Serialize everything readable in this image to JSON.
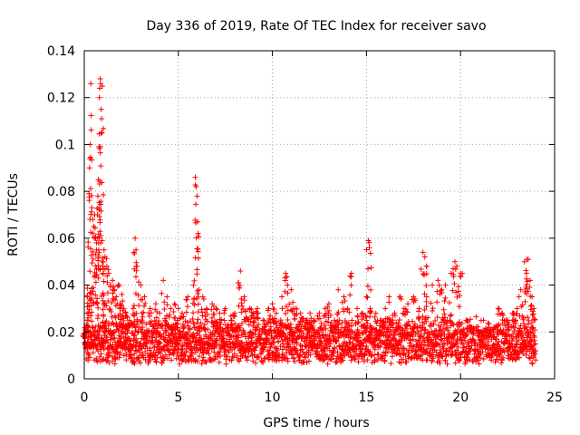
{
  "chart_data": {
    "type": "scatter",
    "title": "Day 336 of 2019, Rate Of TEC Index for receiver savo",
    "xlabel": "GPS time / hours",
    "ylabel": "ROTI / TECUs",
    "xlim": [
      0,
      25
    ],
    "ylim": [
      0,
      0.14
    ],
    "xticks": [
      0,
      5,
      10,
      15,
      20,
      25
    ],
    "xtick_labels": [
      "0",
      "5",
      "10",
      "15",
      "20",
      "25"
    ],
    "yticks": [
      0,
      0.02,
      0.04,
      0.06,
      0.08,
      0.1,
      0.12,
      0.14
    ],
    "ytick_labels": [
      "0",
      "0.02",
      "0.04",
      "0.06",
      "0.08",
      "0.1",
      "0.12",
      "0.14"
    ],
    "grid": true,
    "marker": "+",
    "color": "#ff0000",
    "series": [
      {
        "points": [
          [
            0.0,
            0.018
          ],
          [
            0.1,
            0.022
          ],
          [
            0.15,
            0.035
          ],
          [
            0.2,
            0.026
          ],
          [
            0.25,
            0.079
          ],
          [
            0.28,
            0.09
          ],
          [
            0.3,
            0.094
          ],
          [
            0.32,
            0.1
          ],
          [
            0.35,
            0.126
          ],
          [
            0.4,
            0.073
          ],
          [
            0.45,
            0.068
          ],
          [
            0.5,
            0.065
          ],
          [
            0.55,
            0.07
          ],
          [
            0.6,
            0.06
          ],
          [
            0.65,
            0.055
          ],
          [
            0.7,
            0.07
          ],
          [
            0.72,
            0.078
          ],
          [
            0.75,
            0.085
          ],
          [
            0.78,
            0.099
          ],
          [
            0.8,
            0.12
          ],
          [
            0.82,
            0.124
          ],
          [
            0.85,
            0.128
          ],
          [
            0.87,
            0.126
          ],
          [
            0.9,
            0.115
          ],
          [
            0.92,
            0.111
          ],
          [
            0.95,
            0.05
          ],
          [
            1.0,
            0.045
          ],
          [
            1.05,
            0.055
          ],
          [
            1.1,
            0.052
          ],
          [
            1.2,
            0.048
          ],
          [
            1.3,
            0.045
          ],
          [
            1.4,
            0.04
          ],
          [
            1.5,
            0.042
          ],
          [
            1.6,
            0.038
          ],
          [
            1.7,
            0.035
          ],
          [
            1.8,
            0.04
          ],
          [
            1.9,
            0.032
          ],
          [
            2.0,
            0.036
          ],
          [
            2.1,
            0.03
          ],
          [
            2.2,
            0.028
          ],
          [
            2.4,
            0.025
          ],
          [
            2.6,
            0.03
          ],
          [
            2.7,
            0.06
          ],
          [
            2.75,
            0.055
          ],
          [
            2.8,
            0.048
          ],
          [
            3.0,
            0.04
          ],
          [
            3.2,
            0.035
          ],
          [
            3.5,
            0.03
          ],
          [
            3.8,
            0.032
          ],
          [
            4.0,
            0.028
          ],
          [
            4.2,
            0.042
          ],
          [
            4.4,
            0.035
          ],
          [
            4.6,
            0.03
          ],
          [
            4.8,
            0.032
          ],
          [
            5.0,
            0.03
          ],
          [
            5.2,
            0.028
          ],
          [
            5.5,
            0.035
          ],
          [
            5.8,
            0.04
          ],
          [
            5.9,
            0.086
          ],
          [
            5.95,
            0.082
          ],
          [
            6.0,
            0.078
          ],
          [
            6.05,
            0.062
          ],
          [
            6.1,
            0.038
          ],
          [
            6.3,
            0.035
          ],
          [
            6.5,
            0.03
          ],
          [
            6.8,
            0.032
          ],
          [
            7.0,
            0.03
          ],
          [
            7.2,
            0.028
          ],
          [
            7.5,
            0.03
          ],
          [
            7.8,
            0.025
          ],
          [
            8.0,
            0.028
          ],
          [
            8.2,
            0.041
          ],
          [
            8.3,
            0.046
          ],
          [
            8.5,
            0.035
          ],
          [
            8.8,
            0.03
          ],
          [
            9.0,
            0.028
          ],
          [
            9.2,
            0.03
          ],
          [
            9.5,
            0.025
          ],
          [
            9.8,
            0.03
          ],
          [
            10.0,
            0.032
          ],
          [
            10.2,
            0.028
          ],
          [
            10.5,
            0.035
          ],
          [
            10.7,
            0.045
          ],
          [
            10.8,
            0.04
          ],
          [
            11.0,
            0.038
          ],
          [
            11.2,
            0.03
          ],
          [
            11.5,
            0.028
          ],
          [
            11.8,
            0.025
          ],
          [
            12.0,
            0.028
          ],
          [
            12.2,
            0.025
          ],
          [
            12.5,
            0.028
          ],
          [
            12.8,
            0.03
          ],
          [
            13.0,
            0.032
          ],
          [
            13.3,
            0.025
          ],
          [
            13.5,
            0.038
          ],
          [
            13.8,
            0.035
          ],
          [
            14.0,
            0.03
          ],
          [
            14.2,
            0.045
          ],
          [
            14.5,
            0.03
          ],
          [
            14.8,
            0.028
          ],
          [
            15.0,
            0.035
          ],
          [
            15.1,
            0.059
          ],
          [
            15.15,
            0.056
          ],
          [
            15.2,
            0.03
          ],
          [
            15.5,
            0.028
          ],
          [
            15.8,
            0.025
          ],
          [
            16.0,
            0.03
          ],
          [
            16.2,
            0.035
          ],
          [
            16.5,
            0.028
          ],
          [
            16.8,
            0.035
          ],
          [
            17.0,
            0.03
          ],
          [
            17.2,
            0.032
          ],
          [
            17.5,
            0.035
          ],
          [
            17.8,
            0.03
          ],
          [
            18.0,
            0.054
          ],
          [
            18.1,
            0.052
          ],
          [
            18.2,
            0.048
          ],
          [
            18.5,
            0.04
          ],
          [
            18.8,
            0.042
          ],
          [
            19.0,
            0.038
          ],
          [
            19.2,
            0.04
          ],
          [
            19.5,
            0.045
          ],
          [
            19.7,
            0.05
          ],
          [
            19.8,
            0.048
          ],
          [
            20.0,
            0.045
          ],
          [
            20.3,
            0.025
          ],
          [
            20.6,
            0.022
          ],
          [
            21.0,
            0.02
          ],
          [
            21.5,
            0.018
          ],
          [
            21.8,
            0.022
          ],
          [
            22.0,
            0.03
          ],
          [
            22.2,
            0.028
          ],
          [
            22.5,
            0.025
          ],
          [
            22.8,
            0.028
          ],
          [
            23.0,
            0.03
          ],
          [
            23.2,
            0.038
          ],
          [
            23.4,
            0.05
          ],
          [
            23.5,
            0.045
          ],
          [
            23.6,
            0.051
          ],
          [
            23.7,
            0.042
          ],
          [
            23.8,
            0.035
          ],
          [
            23.9,
            0.03
          ]
        ],
        "base_band": {
          "x_start": 0,
          "x_end": 24,
          "y_min": 0.005,
          "y_max": 0.028
        }
      }
    ]
  }
}
